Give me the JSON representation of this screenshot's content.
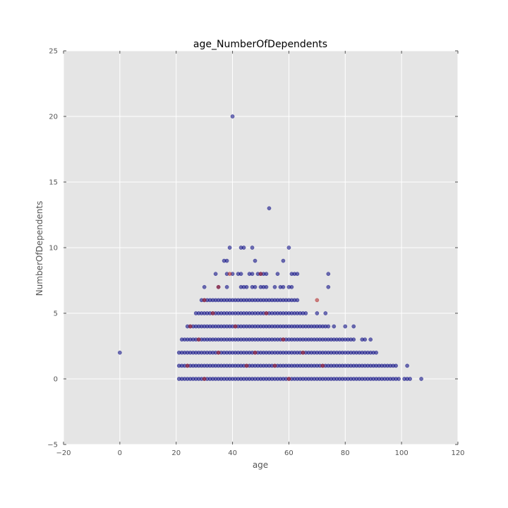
{
  "chart_data": {
    "type": "scatter",
    "title": "age_NumberOfDependents",
    "xlabel": "age",
    "ylabel": "NumberOfDependents",
    "xlim": [
      -20,
      120
    ],
    "ylim": [
      -5,
      25
    ],
    "x_ticks": [
      -20,
      0,
      20,
      40,
      60,
      80,
      100,
      120
    ],
    "y_ticks": [
      -5,
      0,
      5,
      10,
      15,
      20,
      25
    ],
    "x_tick_labels": [
      "−20",
      "0",
      "20",
      "40",
      "60",
      "80",
      "100",
      "120"
    ],
    "y_tick_labels": [
      "−5",
      "0",
      "5",
      "10",
      "15",
      "20",
      "25"
    ],
    "grid": true,
    "colors": {
      "background": "#e5e5e5",
      "grid": "#ffffff",
      "class0": "#000080",
      "class1": "#b22222"
    },
    "series": [
      {
        "class": 0,
        "color": "#000080",
        "dense_ranges": [
          {
            "y": 0,
            "x_range": [
              21,
              99
            ]
          },
          {
            "y": 1,
            "x_range": [
              21,
              94
            ]
          },
          {
            "y": 2,
            "x_range": [
              21,
              88
            ]
          },
          {
            "y": 3,
            "x_range": [
              22,
              83
            ]
          },
          {
            "y": 4,
            "x_range": [
              24,
              73
            ]
          },
          {
            "y": 5,
            "x_range": [
              27,
              66
            ]
          },
          {
            "y": 6,
            "x_range": [
              29,
              63
            ]
          }
        ],
        "points": [
          [
            0,
            2
          ],
          [
            101,
            0
          ],
          [
            102,
            0
          ],
          [
            103,
            0
          ],
          [
            107,
            0
          ],
          [
            95,
            1
          ],
          [
            96,
            1
          ],
          [
            97,
            1
          ],
          [
            98,
            1
          ],
          [
            102,
            1
          ],
          [
            89,
            2
          ],
          [
            90,
            2
          ],
          [
            91,
            2
          ],
          [
            86,
            3
          ],
          [
            87,
            3
          ],
          [
            89,
            3
          ],
          [
            74,
            4
          ],
          [
            76,
            4
          ],
          [
            80,
            4
          ],
          [
            83,
            4
          ],
          [
            70,
            5
          ],
          [
            73,
            5
          ],
          [
            43,
            7
          ],
          [
            44,
            7
          ],
          [
            45,
            7
          ],
          [
            47,
            7
          ],
          [
            48,
            7
          ],
          [
            50,
            7
          ],
          [
            51,
            7
          ],
          [
            52,
            7
          ],
          [
            55,
            7
          ],
          [
            57,
            7
          ],
          [
            58,
            7
          ],
          [
            60,
            7
          ],
          [
            61,
            7
          ],
          [
            74,
            7
          ],
          [
            30,
            7
          ],
          [
            35,
            7
          ],
          [
            38,
            7
          ],
          [
            34,
            8
          ],
          [
            38,
            8
          ],
          [
            40,
            8
          ],
          [
            42,
            8
          ],
          [
            43,
            8
          ],
          [
            46,
            8
          ],
          [
            47,
            8
          ],
          [
            49,
            8
          ],
          [
            50,
            8
          ],
          [
            51,
            8
          ],
          [
            52,
            8
          ],
          [
            56,
            8
          ],
          [
            61,
            8
          ],
          [
            62,
            8
          ],
          [
            63,
            8
          ],
          [
            74,
            8
          ],
          [
            37,
            9
          ],
          [
            38,
            9
          ],
          [
            48,
            9
          ],
          [
            58,
            9
          ],
          [
            39,
            10
          ],
          [
            43,
            10
          ],
          [
            44,
            10
          ],
          [
            47,
            10
          ],
          [
            60,
            10
          ],
          [
            53,
            13
          ],
          [
            40,
            20
          ]
        ]
      },
      {
        "class": 1,
        "color": "#b22222",
        "points": [
          [
            30,
            6
          ],
          [
            70,
            6
          ],
          [
            35,
            7
          ],
          [
            39,
            8
          ],
          [
            50,
            8
          ],
          [
            25,
            4
          ],
          [
            28,
            3
          ],
          [
            35,
            2
          ],
          [
            45,
            1
          ],
          [
            60,
            0
          ],
          [
            52,
            5
          ],
          [
            33,
            5
          ],
          [
            41,
            4
          ],
          [
            65,
            2
          ],
          [
            72,
            1
          ],
          [
            24,
            1
          ],
          [
            30,
            0
          ],
          [
            58,
            3
          ],
          [
            48,
            2
          ],
          [
            55,
            1
          ]
        ]
      }
    ]
  }
}
